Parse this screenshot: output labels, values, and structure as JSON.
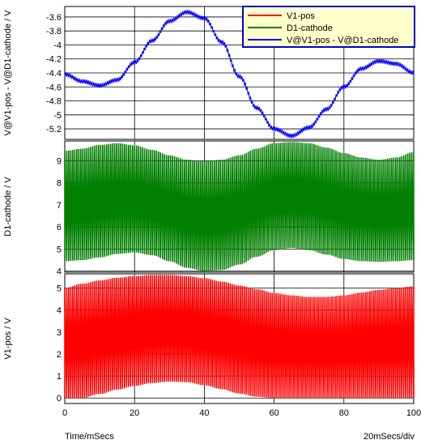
{
  "chart_data": [
    {
      "type": "line",
      "ylabel": "V@V1-pos - V@D1-cathode / V",
      "ylim": [
        -5.35,
        -3.45
      ],
      "yticks": [
        -5.2,
        -5,
        -4.8,
        -4.6,
        -4.4,
        -4.2,
        -4,
        -3.8,
        -3.6
      ],
      "ytick_labels": [
        "-5.2",
        "-5",
        "-4.8",
        "-4.6",
        "-4.4",
        "-4.2",
        "-4",
        "-3.8",
        "-3.6"
      ],
      "grid": true,
      "series": [
        {
          "name": "V@V1-pos - V@D1-cathode",
          "color": "#0000ff",
          "ripple_pp_V": 0.06,
          "envelope_center": {
            "x": [
              0,
              5,
              10,
              15,
              20,
              25,
              30,
              35,
              40,
              45,
              50,
              55,
              60,
              65,
              70,
              75,
              80,
              85,
              90,
              95,
              100
            ],
            "y": [
              -4.42,
              -4.52,
              -4.58,
              -4.5,
              -4.25,
              -3.94,
              -3.66,
              -3.53,
              -3.62,
              -3.96,
              -4.45,
              -4.9,
              -5.2,
              -5.3,
              -5.18,
              -4.92,
              -4.6,
              -4.34,
              -4.23,
              -4.27,
              -4.4
            ]
          }
        }
      ]
    },
    {
      "type": "area",
      "ylabel": "D1-cathode / V",
      "ylim": [
        3.95,
        9.9
      ],
      "yticks": [
        4,
        5,
        6,
        7,
        8,
        9
      ],
      "ytick_labels": [
        "4",
        "5",
        "6",
        "7",
        "8",
        "9"
      ],
      "grid": true,
      "series": [
        {
          "name": "D1-cathode",
          "color": "#007f00",
          "x": [
            0,
            5,
            10,
            15,
            20,
            25,
            30,
            35,
            40,
            45,
            50,
            55,
            60,
            65,
            70,
            75,
            80,
            85,
            90,
            95,
            100
          ],
          "upper": [
            9.45,
            9.55,
            9.72,
            9.8,
            9.7,
            9.5,
            9.25,
            9.05,
            8.98,
            9.05,
            9.25,
            9.55,
            9.8,
            9.85,
            9.8,
            9.6,
            9.35,
            9.15,
            9.05,
            9.15,
            9.4
          ],
          "lower": [
            4.45,
            4.5,
            4.62,
            4.78,
            4.85,
            4.72,
            4.45,
            4.15,
            4.0,
            4.05,
            4.3,
            4.65,
            4.95,
            5.05,
            4.95,
            4.75,
            4.55,
            4.45,
            4.42,
            4.45,
            4.5
          ]
        }
      ]
    },
    {
      "type": "area",
      "ylabel": "V1-pos / V",
      "xlabel": "Time/mSecs",
      "xlim": [
        0,
        100
      ],
      "xticks": [
        0,
        20,
        40,
        60,
        80,
        100
      ],
      "xtick_labels": [
        "0",
        "20",
        "40",
        "60",
        "80",
        "100"
      ],
      "ylim": [
        -0.25,
        5.65
      ],
      "yticks": [
        0,
        1,
        2,
        3,
        4,
        5
      ],
      "ytick_labels": [
        "0",
        "1",
        "2",
        "3",
        "4",
        "5"
      ],
      "grid": true,
      "series": [
        {
          "name": "V1-pos",
          "color": "#ff0000",
          "x": [
            0,
            5,
            10,
            15,
            20,
            25,
            30,
            35,
            40,
            45,
            50,
            55,
            60,
            65,
            70,
            75,
            80,
            85,
            90,
            95,
            100
          ],
          "upper": [
            5.0,
            5.2,
            5.35,
            5.47,
            5.55,
            5.6,
            5.6,
            5.55,
            5.45,
            5.3,
            5.12,
            4.95,
            4.78,
            4.67,
            4.6,
            4.6,
            4.67,
            4.8,
            4.92,
            5.0,
            5.08
          ],
          "lower": [
            0.0,
            0.0,
            0.18,
            0.38,
            0.55,
            0.68,
            0.75,
            0.72,
            0.58,
            0.4,
            0.2,
            0.06,
            0.0,
            0.0,
            0.0,
            0.0,
            0.0,
            0.0,
            0.0,
            0.0,
            0.0
          ]
        }
      ]
    }
  ],
  "legend": {
    "placement": "top-right",
    "entries": [
      {
        "label": "V1-pos",
        "color": "#ff0000"
      },
      {
        "label": "D1-cathode",
        "color": "#007f00"
      },
      {
        "label": "V@V1-pos - V@D1-cathode",
        "color": "#0000ff"
      }
    ]
  },
  "footer": {
    "xlabel": "Time/mSecs",
    "scale_label": "20mSecs/div"
  },
  "colors": {
    "background": "#ffffff",
    "grid": "#000000",
    "legend_background": "#ffffcc",
    "legend_border": "#0000cc"
  }
}
